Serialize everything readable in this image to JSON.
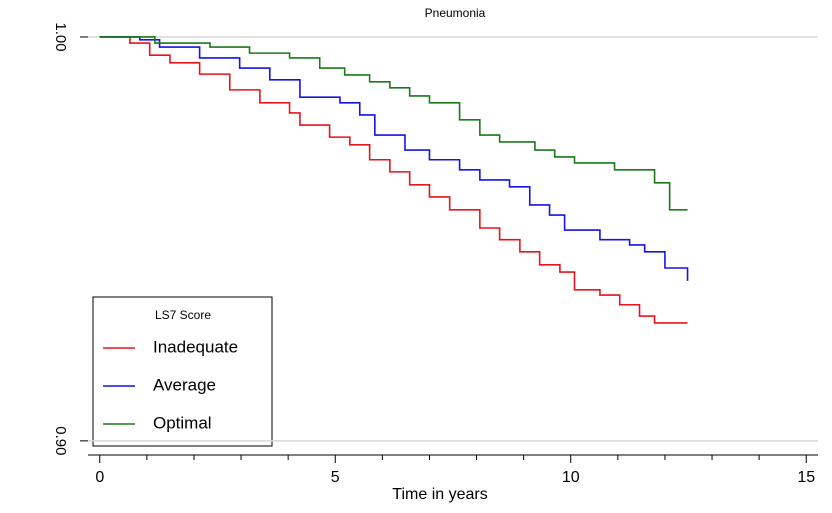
{
  "chart_data": {
    "type": "step",
    "title": "Pneumonia",
    "x_label": "Time in years",
    "xlim": [
      -0.25,
      15.25
    ],
    "ylim": [
      0.8965,
      1.0042
    ],
    "xticks": [
      0,
      5,
      10,
      15
    ],
    "xminorticks": [
      1,
      2,
      3,
      4,
      6,
      7,
      8,
      9,
      11,
      12,
      13,
      14
    ],
    "yticks": [
      {
        "value": 1,
        "label": "1.00"
      },
      {
        "value": 0.9,
        "label": "0.90"
      }
    ],
    "grid": true,
    "legend": {
      "title": "LS7 Score",
      "position": "lower left"
    },
    "series": [
      {
        "name": "Inadequate",
        "color": "#e8141b",
        "x": [
          0,
          0.64,
          1.06,
          1.49,
          2.12,
          2.76,
          3.4,
          4.03,
          4.25,
          4.88,
          5.31,
          5.73,
          6.16,
          6.58,
          7.0,
          7.43,
          8.07,
          8.49,
          8.92,
          9.34,
          9.77,
          10.08,
          10.62,
          11.04,
          11.46,
          11.78,
          12.48
        ],
        "values": [
          1,
          0.9985,
          0.9955,
          0.9936,
          0.9908,
          0.9869,
          0.9837,
          0.9812,
          0.9782,
          0.9752,
          0.9733,
          0.9696,
          0.9666,
          0.9634,
          0.9604,
          0.9572,
          0.9527,
          0.9498,
          0.9468,
          0.9436,
          0.9418,
          0.9374,
          0.9361,
          0.9337,
          0.9309,
          0.9292,
          0.9292
        ]
      },
      {
        "name": "Average",
        "color": "#1414e8",
        "x": [
          0,
          0.85,
          1.27,
          2.12,
          2.97,
          3.61,
          4.25,
          5.1,
          5.52,
          5.84,
          6.48,
          7.0,
          7.64,
          8.07,
          8.7,
          9.13,
          9.55,
          9.87,
          10.62,
          11.25,
          11.57,
          12.0,
          12.48
        ],
        "values": [
          1,
          0.9993,
          0.9975,
          0.9948,
          0.9923,
          0.9894,
          0.9851,
          0.9837,
          0.9807,
          0.9757,
          0.972,
          0.9696,
          0.9671,
          0.9646,
          0.9629,
          0.9584,
          0.9559,
          0.9522,
          0.9498,
          0.9485,
          0.9468,
          0.9428,
          0.9396
        ]
      },
      {
        "name": "Optimal",
        "color": "#1a7a1a",
        "x": [
          0,
          1.06,
          1.17,
          2.34,
          3.18,
          4.03,
          4.67,
          5.2,
          5.73,
          6.16,
          6.58,
          7.0,
          7.64,
          8.07,
          8.49,
          9.24,
          9.66,
          10.08,
          10.93,
          11.78,
          12.1,
          12.48
        ],
        "values": [
          1,
          1,
          0.9985,
          0.9975,
          0.996,
          0.9948,
          0.9923,
          0.9906,
          0.9889,
          0.9874,
          0.9854,
          0.9837,
          0.9795,
          0.9757,
          0.974,
          0.972,
          0.9703,
          0.9688,
          0.9671,
          0.9639,
          0.9572,
          0.9572
        ]
      }
    ]
  }
}
